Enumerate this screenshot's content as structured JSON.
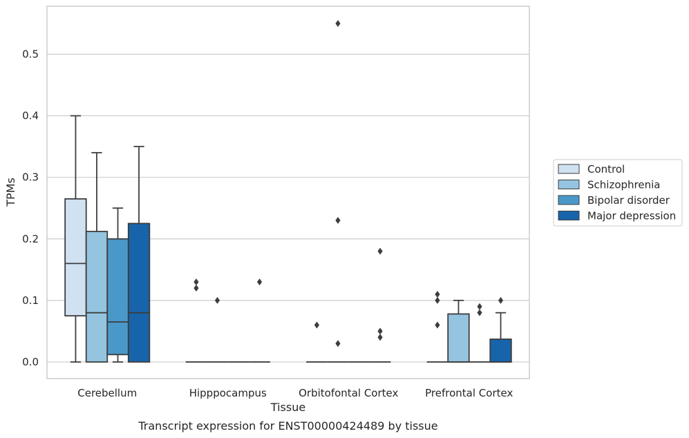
{
  "chart_data": {
    "type": "box",
    "caption": "Transcript expression for ENST00000424489 by tissue",
    "xlabel": "Tissue",
    "ylabel": "TPMs",
    "ylim": [
      -0.027,
      0.578
    ],
    "yticks": [
      "0.0",
      "0.1",
      "0.2",
      "0.3",
      "0.4",
      "0.5"
    ],
    "grid": true,
    "legend_position": "right",
    "categories": [
      "Cerebellum",
      "Hipppocampus",
      "Orbitofontal Cortex",
      "Prefrontal Cortex"
    ],
    "series": [
      {
        "name": "Control",
        "color": "#d0e1f2",
        "boxes": [
          {
            "min": 0.0,
            "q1": 0.075,
            "median": 0.16,
            "q3": 0.265,
            "max": 0.4,
            "outliers": []
          },
          {
            "min": 0.0,
            "q1": 0.0,
            "median": 0.0,
            "q3": 0.0,
            "max": 0.0,
            "outliers": [
              0.12,
              0.13
            ]
          },
          {
            "min": 0.0,
            "q1": 0.0,
            "median": 0.0,
            "q3": 0.0,
            "max": 0.0,
            "outliers": [
              0.06
            ]
          },
          {
            "min": 0.0,
            "q1": 0.0,
            "median": 0.0,
            "q3": 0.0,
            "max": 0.0,
            "outliers": [
              0.06,
              0.1,
              0.11
            ]
          }
        ]
      },
      {
        "name": "Schizophrenia",
        "color": "#94c4df",
        "boxes": [
          {
            "min": 0.0,
            "q1": 0.0,
            "median": 0.08,
            "q3": 0.212,
            "max": 0.34,
            "outliers": []
          },
          {
            "min": 0.0,
            "q1": 0.0,
            "median": 0.0,
            "q3": 0.0,
            "max": 0.0,
            "outliers": [
              0.1
            ]
          },
          {
            "min": 0.0,
            "q1": 0.0,
            "median": 0.0,
            "q3": 0.0,
            "max": 0.0,
            "outliers": [
              0.03,
              0.23,
              0.55
            ]
          },
          {
            "min": 0.0,
            "q1": 0.0,
            "median": 0.0,
            "q3": 0.078,
            "max": 0.1,
            "outliers": []
          }
        ]
      },
      {
        "name": "Bipolar disorder",
        "color": "#4a98c9",
        "boxes": [
          {
            "min": 0.0,
            "q1": 0.012,
            "median": 0.065,
            "q3": 0.2,
            "max": 0.25,
            "outliers": []
          },
          {
            "min": 0.0,
            "q1": 0.0,
            "median": 0.0,
            "q3": 0.0,
            "max": 0.0,
            "outliers": []
          },
          {
            "min": 0.0,
            "q1": 0.0,
            "median": 0.0,
            "q3": 0.0,
            "max": 0.0,
            "outliers": []
          },
          {
            "min": 0.0,
            "q1": 0.0,
            "median": 0.0,
            "q3": 0.0,
            "max": 0.0,
            "outliers": [
              0.08,
              0.09
            ]
          }
        ]
      },
      {
        "name": "Major depression",
        "color": "#1764ab",
        "boxes": [
          {
            "min": 0.0,
            "q1": 0.0,
            "median": 0.08,
            "q3": 0.225,
            "max": 0.35,
            "outliers": []
          },
          {
            "min": 0.0,
            "q1": 0.0,
            "median": 0.0,
            "q3": 0.0,
            "max": 0.0,
            "outliers": [
              0.13
            ]
          },
          {
            "min": 0.0,
            "q1": 0.0,
            "median": 0.0,
            "q3": 0.0,
            "max": 0.0,
            "outliers": [
              0.04,
              0.05,
              0.18
            ]
          },
          {
            "min": 0.0,
            "q1": 0.0,
            "median": 0.0,
            "q3": 0.037,
            "max": 0.08,
            "outliers": [
              0.1
            ]
          }
        ]
      }
    ]
  }
}
